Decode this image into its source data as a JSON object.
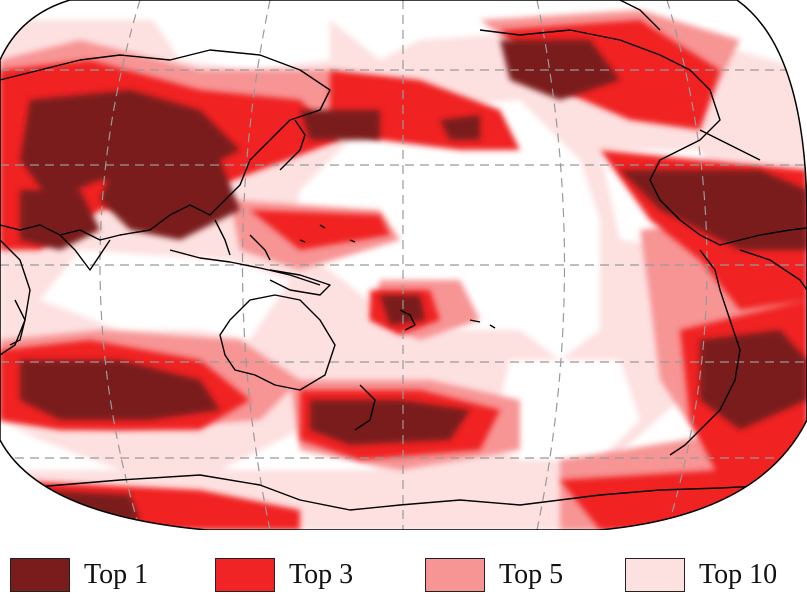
{
  "legend": {
    "items": [
      {
        "label": "Top 1",
        "color": "#7a1c1c"
      },
      {
        "label": "Top 3",
        "color": "#f02424"
      },
      {
        "label": "Top 5",
        "color": "#f79494"
      },
      {
        "label": "Top 10",
        "color": "#fde0e0"
      }
    ]
  },
  "map": {
    "projection": "robinson",
    "center": "pacific",
    "background": "#ffffff",
    "graticule": "dashed"
  }
}
